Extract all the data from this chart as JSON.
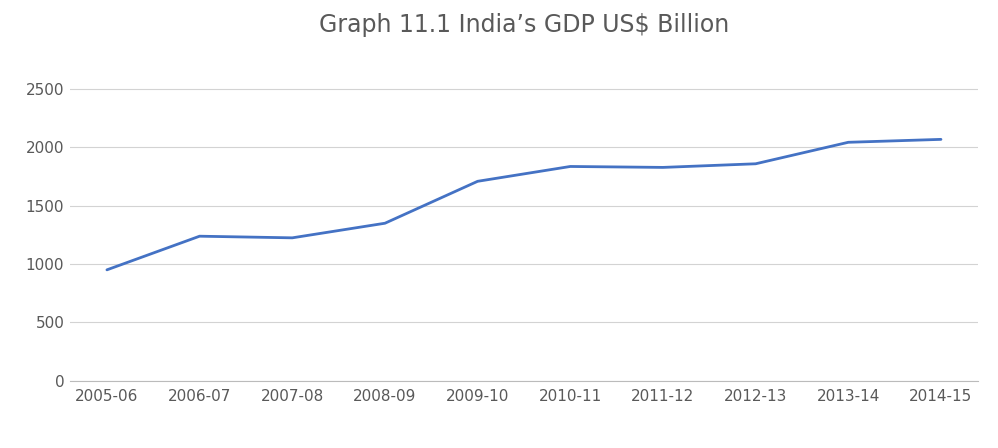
{
  "title": "Graph 11.1 India’s GDP US$ Billion",
  "categories": [
    "2005-06",
    "2006-07",
    "2007-08",
    "2008-09",
    "2009-10",
    "2010-11",
    "2011-12",
    "2012-13",
    "2013-14",
    "2014-15"
  ],
  "values": [
    950,
    1238,
    1224,
    1349,
    1708,
    1835,
    1827,
    1858,
    2042,
    2067
  ],
  "line_color": "#4472C4",
  "line_width": 2.0,
  "background_color": "#ffffff",
  "ylim": [
    0,
    2800
  ],
  "yticks": [
    0,
    500,
    1000,
    1500,
    2000,
    2500
  ],
  "grid_color": "#d3d3d3",
  "title_fontsize": 17,
  "tick_fontsize": 11,
  "title_color": "#595959"
}
